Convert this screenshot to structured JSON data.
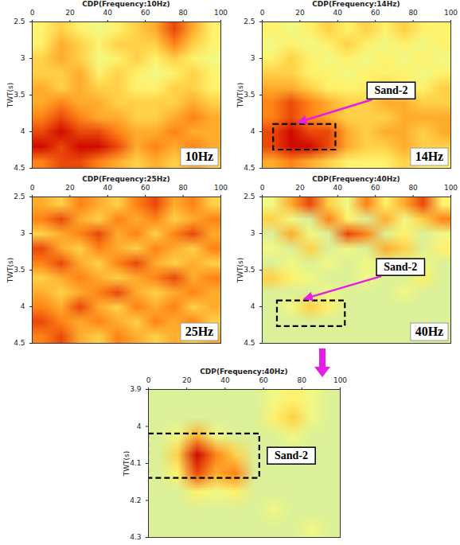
{
  "chart_data": [
    {
      "type": "heatmap",
      "title": "CDP(Frequency:10Hz)",
      "label": "10Hz",
      "y_label": "TWT(s)",
      "xlim": [
        0,
        100
      ],
      "xticks": [
        0,
        20,
        40,
        60,
        80,
        100
      ],
      "ylim": [
        2.5,
        4.5
      ],
      "yticks": [
        2.5,
        3,
        3.5,
        4,
        4.5
      ],
      "zlim": [
        0,
        9
      ],
      "cells": [
        [
          4,
          5,
          4,
          3,
          4,
          5,
          6,
          8,
          6,
          4
        ],
        [
          4,
          6,
          5,
          4,
          5,
          5,
          5,
          7,
          5,
          4
        ],
        [
          5,
          6,
          5,
          3,
          4,
          5,
          4,
          5,
          4,
          3
        ],
        [
          5,
          5,
          6,
          4,
          5,
          4,
          3,
          4,
          5,
          4
        ],
        [
          6,
          5,
          6,
          5,
          5,
          4,
          4,
          5,
          5,
          4
        ],
        [
          6,
          7,
          6,
          6,
          5,
          5,
          5,
          5,
          6,
          5
        ],
        [
          7,
          8,
          7,
          6,
          6,
          5,
          5,
          6,
          7,
          6
        ],
        [
          8,
          9,
          8,
          8,
          7,
          6,
          6,
          7,
          6,
          6
        ],
        [
          9,
          8,
          9,
          9,
          8,
          6,
          7,
          6,
          7,
          6
        ],
        [
          7,
          8,
          8,
          7,
          6,
          5,
          6,
          5,
          6,
          5
        ]
      ],
      "annotations": []
    },
    {
      "type": "heatmap",
      "title": "CDP(Frequency:14Hz)",
      "label": "14Hz",
      "y_label": "TWT(s)",
      "xlim": [
        0,
        100
      ],
      "xticks": [
        0,
        20,
        40,
        60,
        80,
        100
      ],
      "ylim": [
        2.5,
        4.5
      ],
      "yticks": [
        2.5,
        3,
        3.5,
        4,
        4.5
      ],
      "zlim": [
        0,
        9
      ],
      "cells": [
        [
          4,
          3,
          4,
          5,
          4,
          5,
          4,
          5,
          4,
          4
        ],
        [
          3,
          4,
          3,
          4,
          5,
          4,
          3,
          4,
          3,
          4
        ],
        [
          4,
          5,
          4,
          3,
          4,
          3,
          4,
          3,
          4,
          3
        ],
        [
          5,
          5,
          4,
          4,
          3,
          4,
          4,
          4,
          3,
          4
        ],
        [
          6,
          6,
          5,
          4,
          4,
          4,
          5,
          4,
          4,
          5
        ],
        [
          7,
          8,
          7,
          6,
          5,
          5,
          6,
          6,
          5,
          5
        ],
        [
          7,
          8,
          7,
          6,
          5,
          5,
          5,
          6,
          6,
          6
        ],
        [
          8,
          9,
          8,
          8,
          6,
          5,
          6,
          6,
          5,
          6
        ],
        [
          8,
          9,
          9,
          8,
          6,
          5,
          5,
          6,
          5,
          5
        ],
        [
          6,
          7,
          6,
          5,
          4,
          4,
          4,
          5,
          4,
          4
        ]
      ],
      "annotations": [
        {
          "text": "Sand-2",
          "box": {
            "x": [
              6,
              39
            ],
            "y": [
              3.9,
              4.25
            ]
          }
        }
      ]
    },
    {
      "type": "heatmap",
      "title": "CDP(Frequency:25Hz)",
      "label": "25Hz",
      "y_label": "TWT(s)",
      "xlim": [
        0,
        100
      ],
      "xticks": [
        0,
        20,
        40,
        60,
        80,
        100
      ],
      "ylim": [
        2.5,
        4.5
      ],
      "yticks": [
        2.5,
        3,
        3.5,
        4,
        4.5
      ],
      "zlim": [
        0,
        9
      ],
      "cells": [
        [
          6,
          5,
          7,
          6,
          5,
          7,
          8,
          6,
          7,
          5
        ],
        [
          7,
          8,
          6,
          5,
          7,
          6,
          7,
          5,
          6,
          7
        ],
        [
          5,
          6,
          7,
          8,
          6,
          7,
          5,
          7,
          8,
          6
        ],
        [
          8,
          6,
          5,
          7,
          6,
          5,
          7,
          6,
          5,
          7
        ],
        [
          7,
          8,
          6,
          5,
          7,
          8,
          6,
          5,
          6,
          5
        ],
        [
          5,
          6,
          7,
          6,
          5,
          6,
          7,
          8,
          6,
          7
        ],
        [
          6,
          5,
          6,
          7,
          8,
          6,
          5,
          6,
          7,
          6
        ],
        [
          7,
          6,
          8,
          6,
          5,
          7,
          6,
          7,
          5,
          6
        ],
        [
          8,
          7,
          6,
          7,
          6,
          5,
          7,
          6,
          7,
          5
        ],
        [
          7,
          8,
          6,
          5,
          7,
          6,
          5,
          6,
          5,
          6
        ]
      ],
      "annotations": []
    },
    {
      "type": "heatmap",
      "title": "CDP(Frequency:40Hz)",
      "label": "40Hz",
      "y_label": "TWT(s)",
      "xlim": [
        0,
        100
      ],
      "xticks": [
        0,
        20,
        40,
        60,
        80,
        100
      ],
      "ylim": [
        2.5,
        4.5
      ],
      "yticks": [
        2.5,
        3,
        3.5,
        4,
        4.5
      ],
      "zlim": [
        0,
        9
      ],
      "cells": [
        [
          3,
          6,
          8,
          5,
          3,
          7,
          4,
          6,
          8,
          4
        ],
        [
          5,
          3,
          2,
          7,
          4,
          2,
          6,
          3,
          5,
          7
        ],
        [
          2,
          6,
          3,
          2,
          8,
          7,
          2,
          4,
          2,
          3
        ],
        [
          3,
          2,
          5,
          2,
          3,
          2,
          6,
          5,
          2,
          4
        ],
        [
          2,
          3,
          2,
          3,
          2,
          3,
          2,
          2,
          3,
          2
        ],
        [
          5,
          4,
          3,
          2,
          2,
          3,
          2,
          2,
          4,
          2
        ],
        [
          2,
          2,
          2,
          3,
          2,
          2,
          2,
          3,
          2,
          2
        ],
        [
          2,
          3,
          5,
          4,
          2,
          2,
          2,
          2,
          2,
          2
        ],
        [
          2,
          2,
          2,
          2,
          2,
          2,
          2,
          2,
          2,
          2
        ],
        [
          2,
          2,
          2,
          2,
          2,
          2,
          2,
          2,
          2,
          2
        ]
      ],
      "annotations": [
        {
          "text": "Sand-2",
          "box": {
            "x": [
              8,
              44
            ],
            "y": [
              3.92,
              4.27
            ]
          }
        }
      ]
    },
    {
      "type": "heatmap",
      "title": "CDP(Frequency:40Hz)",
      "y_label": "TWT(s)",
      "xlim": [
        0,
        100
      ],
      "xticks": [
        0,
        20,
        40,
        60,
        80,
        100
      ],
      "ylim": [
        3.9,
        4.3
      ],
      "yticks": [
        3.9,
        4,
        4.1,
        4.2,
        4.3
      ],
      "zlim": [
        0,
        9
      ],
      "cells": [
        [
          2,
          2,
          2,
          2,
          2,
          2,
          3,
          4,
          3,
          2
        ],
        [
          2,
          2,
          2,
          2,
          2,
          2,
          4,
          5,
          3,
          2
        ],
        [
          2,
          3,
          6,
          3,
          2,
          2,
          2,
          3,
          2,
          2
        ],
        [
          2,
          5,
          9,
          7,
          5,
          2,
          2,
          2,
          2,
          2
        ],
        [
          2,
          4,
          8,
          6,
          7,
          2,
          2,
          2,
          2,
          2
        ],
        [
          2,
          2,
          4,
          3,
          4,
          2,
          2,
          2,
          2,
          2
        ],
        [
          2,
          2,
          2,
          2,
          2,
          2,
          3,
          2,
          2,
          2
        ],
        [
          2,
          2,
          2,
          2,
          2,
          2,
          2,
          2,
          3,
          2
        ]
      ],
      "annotations": [
        {
          "text": "Sand-2",
          "box": {
            "x": [
              0,
              58
            ],
            "y": [
              4.02,
              4.14
            ]
          }
        }
      ]
    }
  ]
}
